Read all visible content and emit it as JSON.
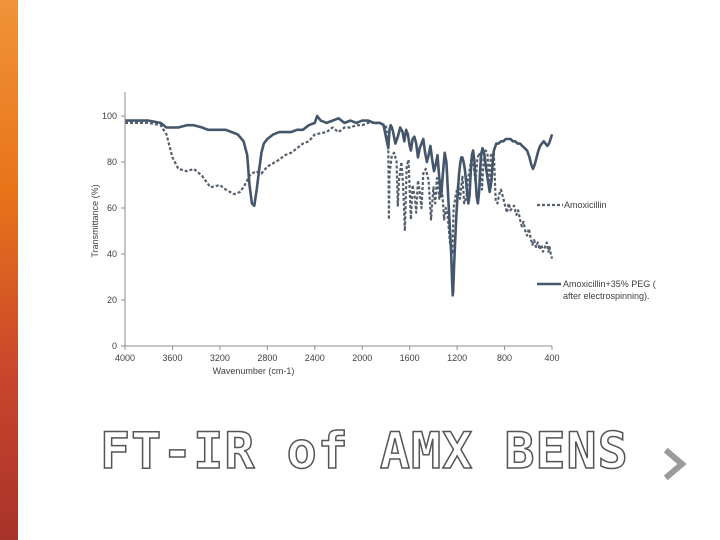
{
  "slide": {
    "title": "FT-IR of AMX BENS",
    "accent_colors": [
      "#f0933a",
      "#e8741a",
      "#c8452c",
      "#a8332a"
    ]
  },
  "navigation": {
    "next_icon": "chevron-right-icon"
  },
  "chart_data": {
    "type": "line",
    "title": "",
    "xlabel": "Wavenumber (cm-1)",
    "ylabel": "Transmittance (%)",
    "xlim": [
      4000,
      400
    ],
    "ylim": [
      0,
      100
    ],
    "x_ticks": [
      4000,
      3600,
      3200,
      2800,
      2400,
      2000,
      1600,
      1200,
      800,
      400
    ],
    "y_ticks": [
      0,
      20,
      40,
      60,
      80,
      100
    ],
    "grid": false,
    "legend_position": "right",
    "series": [
      {
        "name": "Amoxicillin",
        "style": "dashed",
        "color": "#555f6c",
        "points": [
          [
            4000,
            97
          ],
          [
            3800,
            97
          ],
          [
            3700,
            96
          ],
          [
            3650,
            92
          ],
          [
            3600,
            82
          ],
          [
            3550,
            77
          ],
          [
            3480,
            76
          ],
          [
            3420,
            77
          ],
          [
            3350,
            74
          ],
          [
            3280,
            69
          ],
          [
            3200,
            70
          ],
          [
            3150,
            68
          ],
          [
            3080,
            66
          ],
          [
            3030,
            67
          ],
          [
            2990,
            70
          ],
          [
            2950,
            74
          ],
          [
            2900,
            76
          ],
          [
            2850,
            75
          ],
          [
            2800,
            78
          ],
          [
            2700,
            81
          ],
          [
            2650,
            83
          ],
          [
            2600,
            84
          ],
          [
            2500,
            88
          ],
          [
            2450,
            89
          ],
          [
            2400,
            92
          ],
          [
            2300,
            93
          ],
          [
            2250,
            95
          ],
          [
            2200,
            93
          ],
          [
            2150,
            95
          ],
          [
            2100,
            95
          ],
          [
            2050,
            96
          ],
          [
            2000,
            96
          ],
          [
            1950,
            97
          ],
          [
            1860,
            97
          ],
          [
            1800,
            96
          ],
          [
            1780,
            87
          ],
          [
            1775,
            55
          ],
          [
            1770,
            75
          ],
          [
            1750,
            83
          ],
          [
            1730,
            84
          ],
          [
            1710,
            80
          ],
          [
            1700,
            61
          ],
          [
            1690,
            72
          ],
          [
            1670,
            80
          ],
          [
            1655,
            70
          ],
          [
            1640,
            50
          ],
          [
            1625,
            78
          ],
          [
            1610,
            81
          ],
          [
            1590,
            55
          ],
          [
            1575,
            70
          ],
          [
            1555,
            64
          ],
          [
            1545,
            58
          ],
          [
            1530,
            72
          ],
          [
            1515,
            67
          ],
          [
            1500,
            60
          ],
          [
            1485,
            75
          ],
          [
            1465,
            77
          ],
          [
            1440,
            72
          ],
          [
            1420,
            55
          ],
          [
            1400,
            69
          ],
          [
            1385,
            62
          ],
          [
            1370,
            73
          ],
          [
            1350,
            64
          ],
          [
            1335,
            72
          ],
          [
            1320,
            63
          ],
          [
            1310,
            55
          ],
          [
            1295,
            60
          ],
          [
            1280,
            57
          ],
          [
            1260,
            45
          ],
          [
            1240,
            40
          ],
          [
            1230,
            60
          ],
          [
            1210,
            66
          ],
          [
            1190,
            70
          ],
          [
            1175,
            64
          ],
          [
            1155,
            74
          ],
          [
            1140,
            62
          ],
          [
            1120,
            65
          ],
          [
            1110,
            72
          ],
          [
            1090,
            78
          ],
          [
            1075,
            83
          ],
          [
            1060,
            78
          ],
          [
            1045,
            71
          ],
          [
            1030,
            81
          ],
          [
            1015,
            84
          ],
          [
            1005,
            83
          ],
          [
            990,
            68
          ],
          [
            975,
            82
          ],
          [
            960,
            85
          ],
          [
            945,
            84
          ],
          [
            930,
            71
          ],
          [
            915,
            83
          ],
          [
            900,
            84
          ],
          [
            890,
            83
          ],
          [
            875,
            63
          ],
          [
            860,
            62
          ],
          [
            845,
            66
          ],
          [
            830,
            68
          ],
          [
            810,
            64
          ],
          [
            795,
            61
          ],
          [
            780,
            58
          ],
          [
            765,
            62
          ],
          [
            750,
            59
          ],
          [
            735,
            60
          ],
          [
            720,
            61
          ],
          [
            700,
            57
          ],
          [
            685,
            59
          ],
          [
            670,
            55
          ],
          [
            655,
            52
          ],
          [
            640,
            54
          ],
          [
            625,
            50
          ],
          [
            610,
            48
          ],
          [
            595,
            51
          ],
          [
            580,
            47
          ],
          [
            565,
            44
          ],
          [
            550,
            46
          ],
          [
            535,
            43
          ],
          [
            520,
            45
          ],
          [
            505,
            42
          ],
          [
            490,
            44
          ],
          [
            475,
            41
          ],
          [
            460,
            43
          ],
          [
            445,
            45
          ],
          [
            430,
            41
          ],
          [
            420,
            43
          ],
          [
            410,
            40
          ],
          [
            400,
            38
          ]
        ]
      },
      {
        "name": "Amoxicillin+35% PEG ( after electrospinning).",
        "style": "solid",
        "color": "#44566b",
        "points": [
          [
            4000,
            98
          ],
          [
            3900,
            98
          ],
          [
            3800,
            98
          ],
          [
            3700,
            97
          ],
          [
            3650,
            95
          ],
          [
            3600,
            95
          ],
          [
            3550,
            95
          ],
          [
            3480,
            96
          ],
          [
            3420,
            96
          ],
          [
            3350,
            95
          ],
          [
            3300,
            94
          ],
          [
            3250,
            94
          ],
          [
            3200,
            94
          ],
          [
            3150,
            94
          ],
          [
            3100,
            93
          ],
          [
            3050,
            92
          ],
          [
            3000,
            89
          ],
          [
            2970,
            83
          ],
          [
            2950,
            70
          ],
          [
            2930,
            62
          ],
          [
            2910,
            61
          ],
          [
            2890,
            68
          ],
          [
            2870,
            76
          ],
          [
            2850,
            84
          ],
          [
            2830,
            88
          ],
          [
            2800,
            90
          ],
          [
            2750,
            92
          ],
          [
            2700,
            93
          ],
          [
            2650,
            93
          ],
          [
            2600,
            93
          ],
          [
            2550,
            94
          ],
          [
            2500,
            94
          ],
          [
            2450,
            96
          ],
          [
            2400,
            97
          ],
          [
            2380,
            100
          ],
          [
            2350,
            98
          ],
          [
            2300,
            97
          ],
          [
            2250,
            98
          ],
          [
            2200,
            99
          ],
          [
            2150,
            97
          ],
          [
            2100,
            98
          ],
          [
            2050,
            97
          ],
          [
            2000,
            98
          ],
          [
            1950,
            98
          ],
          [
            1900,
            97
          ],
          [
            1850,
            97
          ],
          [
            1820,
            96
          ],
          [
            1800,
            91
          ],
          [
            1780,
            86
          ],
          [
            1770,
            94
          ],
          [
            1760,
            96
          ],
          [
            1750,
            95
          ],
          [
            1740,
            93
          ],
          [
            1720,
            88
          ],
          [
            1700,
            91
          ],
          [
            1680,
            95
          ],
          [
            1660,
            93
          ],
          [
            1645,
            89
          ],
          [
            1630,
            94
          ],
          [
            1615,
            92
          ],
          [
            1600,
            87
          ],
          [
            1590,
            85
          ],
          [
            1575,
            90
          ],
          [
            1560,
            91
          ],
          [
            1545,
            88
          ],
          [
            1530,
            82
          ],
          [
            1515,
            86
          ],
          [
            1500,
            88
          ],
          [
            1485,
            90
          ],
          [
            1470,
            84
          ],
          [
            1455,
            80
          ],
          [
            1440,
            83
          ],
          [
            1425,
            87
          ],
          [
            1410,
            81
          ],
          [
            1395,
            76
          ],
          [
            1380,
            79
          ],
          [
            1365,
            83
          ],
          [
            1350,
            73
          ],
          [
            1335,
            65
          ],
          [
            1320,
            75
          ],
          [
            1305,
            84
          ],
          [
            1290,
            80
          ],
          [
            1280,
            70
          ],
          [
            1270,
            60
          ],
          [
            1260,
            50
          ],
          [
            1250,
            40
          ],
          [
            1245,
            32
          ],
          [
            1240,
            25
          ],
          [
            1237,
            22
          ],
          [
            1233,
            24
          ],
          [
            1225,
            35
          ],
          [
            1215,
            47
          ],
          [
            1205,
            58
          ],
          [
            1195,
            66
          ],
          [
            1185,
            74
          ],
          [
            1175,
            79
          ],
          [
            1165,
            82
          ],
          [
            1155,
            82
          ],
          [
            1145,
            80
          ],
          [
            1135,
            77
          ],
          [
            1125,
            72
          ],
          [
            1115,
            66
          ],
          [
            1105,
            62
          ],
          [
            1095,
            66
          ],
          [
            1085,
            76
          ],
          [
            1075,
            83
          ],
          [
            1065,
            85
          ],
          [
            1055,
            81
          ],
          [
            1045,
            73
          ],
          [
            1035,
            65
          ],
          [
            1025,
            62
          ],
          [
            1015,
            67
          ],
          [
            1005,
            77
          ],
          [
            995,
            84
          ],
          [
            985,
            86
          ],
          [
            970,
            83
          ],
          [
            955,
            77
          ],
          [
            940,
            72
          ],
          [
            925,
            67
          ],
          [
            910,
            72
          ],
          [
            900,
            80
          ],
          [
            890,
            85
          ],
          [
            870,
            88
          ],
          [
            850,
            88
          ],
          [
            830,
            89
          ],
          [
            810,
            89
          ],
          [
            790,
            90
          ],
          [
            770,
            90
          ],
          [
            750,
            90
          ],
          [
            730,
            89
          ],
          [
            710,
            89
          ],
          [
            690,
            88
          ],
          [
            670,
            88
          ],
          [
            650,
            87
          ],
          [
            630,
            86
          ],
          [
            610,
            85
          ],
          [
            590,
            82
          ],
          [
            575,
            79
          ],
          [
            560,
            77
          ],
          [
            545,
            79
          ],
          [
            530,
            82
          ],
          [
            515,
            85
          ],
          [
            500,
            87
          ],
          [
            485,
            88
          ],
          [
            470,
            89
          ],
          [
            455,
            88
          ],
          [
            440,
            87
          ],
          [
            425,
            88
          ],
          [
            412,
            90
          ],
          [
            400,
            92
          ]
        ]
      }
    ]
  }
}
